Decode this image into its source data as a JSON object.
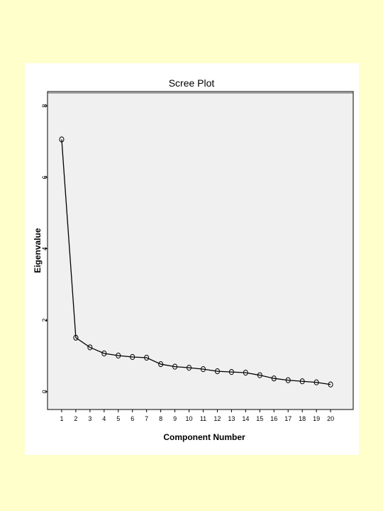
{
  "page": {
    "background": "#ffffcc"
  },
  "chart_data": {
    "type": "line",
    "title": "Scree Plot",
    "xlabel": "Component Number",
    "ylabel": "Eigenvalue",
    "x": [
      1,
      2,
      3,
      4,
      5,
      6,
      7,
      8,
      9,
      10,
      11,
      12,
      13,
      14,
      15,
      16,
      17,
      18,
      19,
      20
    ],
    "xtick_labels": [
      "1",
      "2",
      "3",
      "4",
      "5",
      "6",
      "7",
      "8",
      "9",
      "10",
      "11",
      "12",
      "13",
      "14",
      "15",
      "16",
      "17",
      "18",
      "19",
      "20"
    ],
    "ytick_values": [
      0,
      2,
      4,
      6,
      8
    ],
    "ytick_labels": [
      "0",
      "2",
      "4",
      "6",
      "8"
    ],
    "ylim": [
      -0.5,
      8.4
    ],
    "xlim": [
      0,
      21.6
    ],
    "series": [
      {
        "values": [
          7.06,
          1.51,
          1.24,
          1.07,
          1.01,
          0.97,
          0.95,
          0.77,
          0.7,
          0.67,
          0.63,
          0.57,
          0.55,
          0.53,
          0.46,
          0.37,
          0.32,
          0.29,
          0.26,
          0.2
        ]
      }
    ],
    "grid": false,
    "legend": "none",
    "colors": {
      "plot_background": "#f0f0f0",
      "line": "#000000",
      "marker_stroke": "#000000"
    }
  }
}
